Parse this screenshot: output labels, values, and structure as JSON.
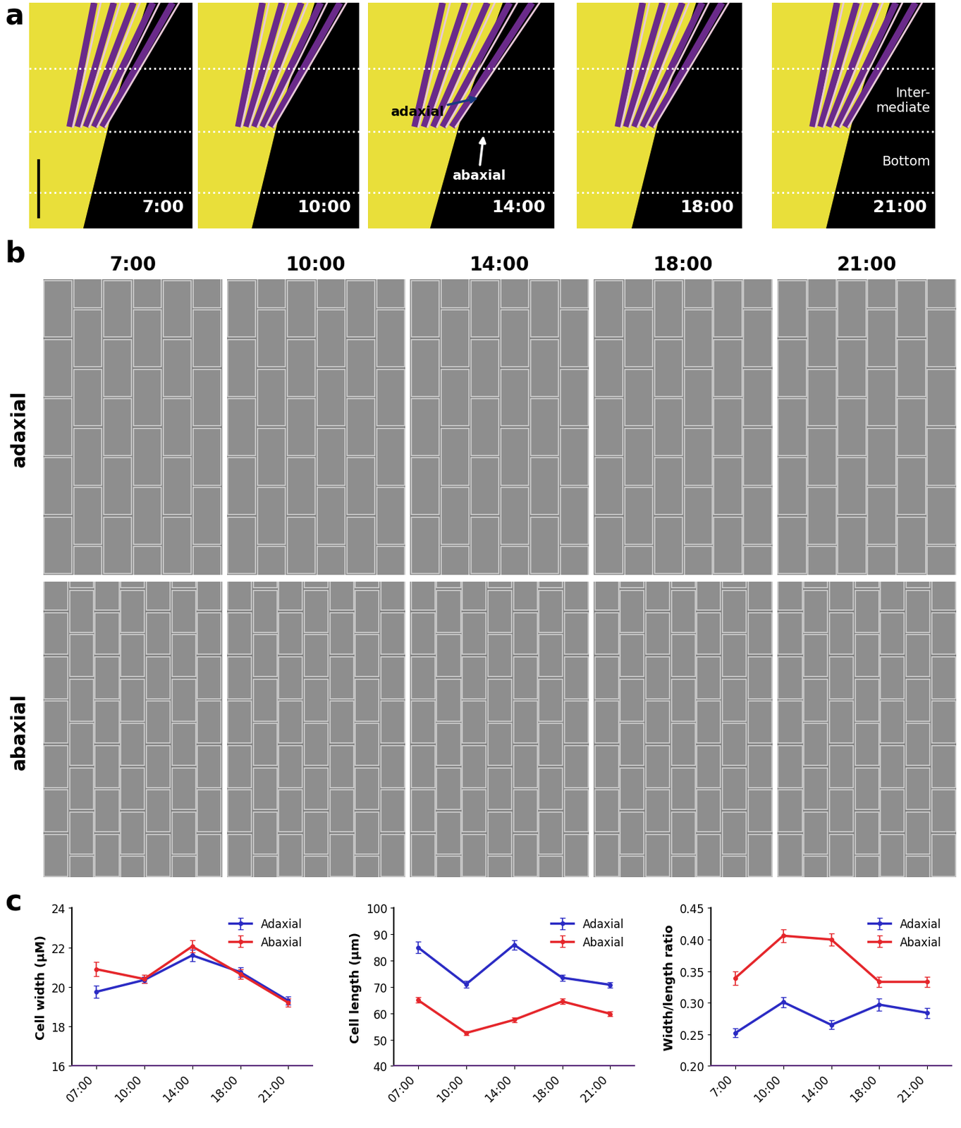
{
  "panel_labels": [
    "a",
    "b",
    "c"
  ],
  "photos": {
    "times": [
      "7:00",
      "10:00",
      "14:00",
      "18:00",
      "21:00"
    ],
    "arrows": [
      "adaxial",
      "abaxial"
    ],
    "regions": [
      "Inter-\nmediate",
      "Bottom"
    ]
  },
  "sem": {
    "times": [
      "7:00",
      "10:00",
      "14:00",
      "18:00",
      "21:00"
    ],
    "rows": [
      "adaxial",
      "abaxial"
    ]
  },
  "chart_data": [
    {
      "type": "line",
      "y_label": "Cell width (μM)",
      "categories": [
        "07:00",
        "10:00",
        "14:00",
        "18:00",
        "21:00"
      ],
      "ylim": [
        16,
        24
      ],
      "yticks": [
        16,
        18,
        20,
        22,
        24
      ],
      "legend": "upper right",
      "series": [
        {
          "name": "Adaxial",
          "color": "#2b2bc4",
          "marker": "circle",
          "values": [
            19.75,
            20.35,
            21.6,
            20.75,
            19.3
          ],
          "errors": [
            0.3,
            0.15,
            0.3,
            0.25,
            0.2
          ]
        },
        {
          "name": "Abaxial",
          "color": "#e5262b",
          "marker": "circle",
          "values": [
            20.9,
            20.4,
            22.05,
            20.65,
            19.2
          ],
          "errors": [
            0.35,
            0.2,
            0.3,
            0.25,
            0.2
          ]
        }
      ]
    },
    {
      "type": "line",
      "y_label": "Cell length (μm)",
      "categories": [
        "07:00",
        "10:00",
        "14:00",
        "18:00",
        "21:00"
      ],
      "ylim": [
        40,
        100
      ],
      "yticks": [
        40,
        50,
        60,
        70,
        80,
        90,
        100
      ],
      "legend": "upper right",
      "series": [
        {
          "name": "Adaxial",
          "color": "#2b2bc4",
          "marker": "circle",
          "values": [
            85,
            71,
            86,
            73.5,
            70.8
          ],
          "errors": [
            2.2,
            1.2,
            1.8,
            1.2,
            1.0
          ]
        },
        {
          "name": "Abaxial",
          "color": "#e5262b",
          "marker": "circle",
          "values": [
            65,
            52.5,
            57.5,
            64.5,
            59.8
          ],
          "errors": [
            1.0,
            0.7,
            1.0,
            1.0,
            1.0
          ]
        }
      ]
    },
    {
      "type": "line",
      "y_label": "Width/length ratio",
      "categories": [
        "7:00",
        "10:00",
        "14:00",
        "18:00",
        "21:00"
      ],
      "ylim": [
        0.2,
        0.45
      ],
      "yticks": [
        {
          "value": 0.2,
          "label": "0.20"
        },
        {
          "value": 0.25,
          "label": "0.25"
        },
        {
          "value": 0.3,
          "label": "0.30"
        },
        {
          "value": 0.35,
          "label": "0.35"
        },
        {
          "value": 0.4,
          "label": "0.40"
        },
        {
          "value": 0.45,
          "label": "0.45"
        }
      ],
      "legend": "upper right",
      "series": [
        {
          "name": "Adaxial",
          "color": "#2b2bc4",
          "marker": "circle",
          "values": [
            0.252,
            0.301,
            0.265,
            0.297,
            0.284
          ],
          "errors": [
            0.007,
            0.008,
            0.007,
            0.01,
            0.008
          ]
        },
        {
          "name": "Abaxial",
          "color": "#e5262b",
          "marker": "circle",
          "values": [
            0.339,
            0.406,
            0.4,
            0.333,
            0.333
          ],
          "errors": [
            0.011,
            0.01,
            0.01,
            0.008,
            0.008
          ]
        }
      ]
    }
  ]
}
